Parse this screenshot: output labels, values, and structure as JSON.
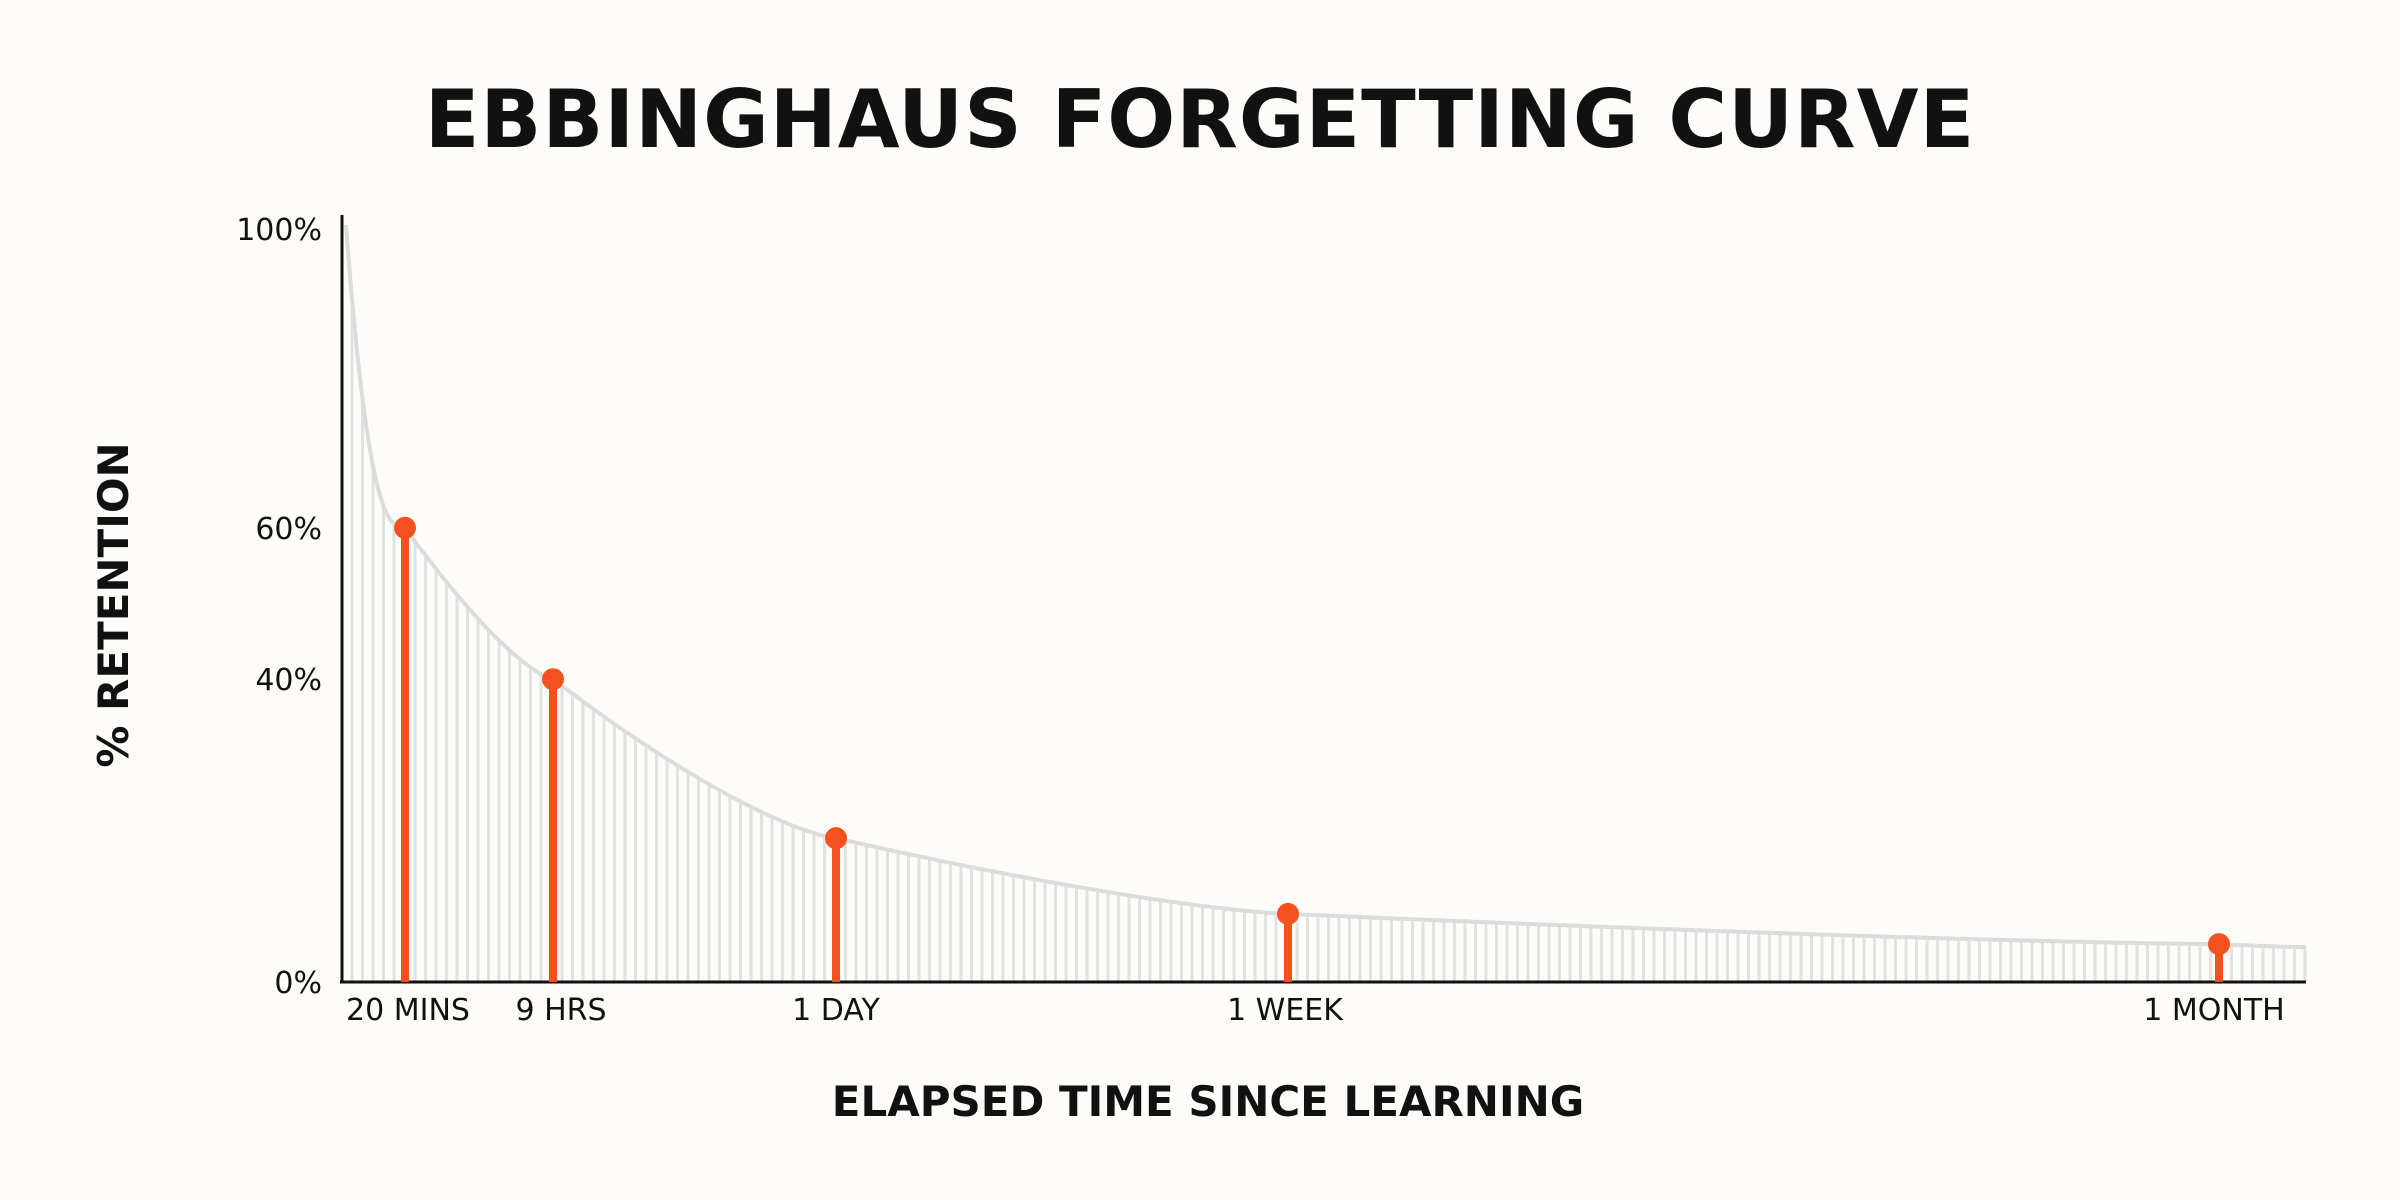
{
  "chart_data": {
    "type": "line",
    "title": "EBBINGHAUS FORGETTING CURVE",
    "xlabel": "ELAPSED TIME SINCE LEARNING",
    "ylabel": "% RETENTION",
    "y_ticks": [
      "0%",
      "40%",
      "60%",
      "100%"
    ],
    "y_tick_values": [
      0,
      40,
      60,
      100
    ],
    "ylim": [
      0,
      100
    ],
    "categories": [
      "20 MINS",
      "9 HRS",
      "1 DAY",
      "1 WEEK",
      "1 MONTH"
    ],
    "values": [
      60,
      40,
      19,
      9,
      5
    ],
    "grid": false,
    "colors": {
      "marker": "#f4511e",
      "curve": "#dcdcdc",
      "hatch": "#e2e2e2",
      "axis": "#111111",
      "background": "#fdfcf9"
    }
  }
}
